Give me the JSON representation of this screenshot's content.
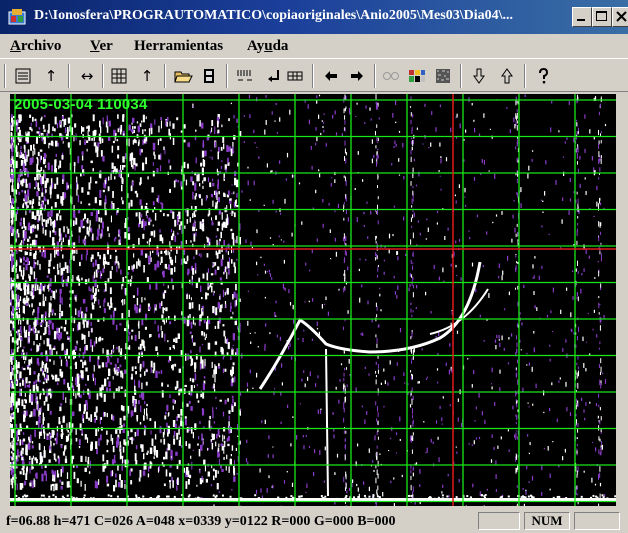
{
  "window": {
    "title": "D:\\Ionosfera\\PROGRAUTOMATICO\\copiaoriginales\\Anio2005\\Mes03\\Dia04\\..."
  },
  "menu": {
    "items": [
      {
        "label": "Archivo",
        "accel": "A"
      },
      {
        "label": "Ver",
        "accel": "V"
      },
      {
        "label": "Herramientas",
        "accel": ""
      },
      {
        "label": "Ayuda",
        "accel": "u"
      }
    ]
  },
  "toolbar": {
    "buttons": [
      {
        "name": "list-icon"
      },
      {
        "name": "arrow-up-icon"
      },
      {
        "name": "arrows-horizontal-icon"
      },
      {
        "name": "grid-icon"
      },
      {
        "name": "arrow-up-icon"
      },
      {
        "name": "folder-open-icon"
      },
      {
        "name": "film-icon"
      },
      {
        "name": "ticks-icon"
      },
      {
        "name": "enter-icon"
      },
      {
        "name": "table-icon"
      },
      {
        "name": "arrow-left-icon"
      },
      {
        "name": "arrow-right-icon"
      },
      {
        "name": "circles-icon"
      },
      {
        "name": "mosaic-icon"
      },
      {
        "name": "noise-icon"
      },
      {
        "name": "arrow-down-outline-icon"
      },
      {
        "name": "arrow-up-outline-icon"
      },
      {
        "name": "help-icon"
      }
    ]
  },
  "plot": {
    "timestamp": "2005-03-04 110034",
    "grid_color": "#19e619",
    "cursor_color": "#e01a1a",
    "trace_color": "#ffffff",
    "noise_color": "#8a3cc8"
  },
  "status": {
    "readout": "f=06.88  h=471  C=026  A=048  x=0339  y=0122  R=000  G=000  B=000",
    "num": "NUM"
  }
}
